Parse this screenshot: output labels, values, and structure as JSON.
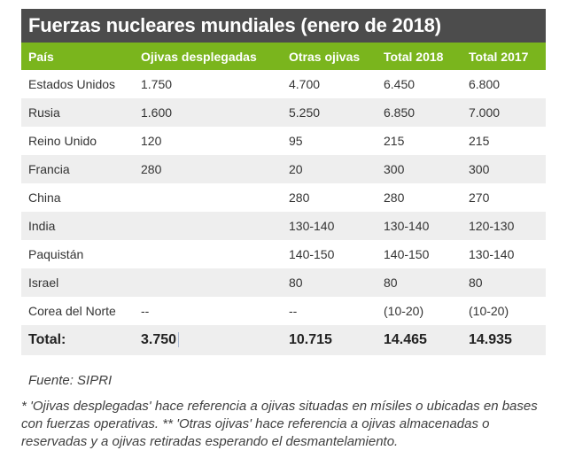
{
  "title": "Fuerzas nucleares mundiales (enero de 2018)",
  "columns": [
    "País",
    "Ojivas desplegadas",
    "Otras ojivas",
    "Total 2018",
    "Total 2017"
  ],
  "rows": [
    [
      "Estados Unidos",
      "1.750",
      "4.700",
      "6.450",
      "6.800"
    ],
    [
      "Rusia",
      "1.600",
      "5.250",
      "6.850",
      "7.000"
    ],
    [
      "Reino Unido",
      "120",
      "95",
      "215",
      "215"
    ],
    [
      "Francia",
      "280",
      "20",
      "300",
      "300"
    ],
    [
      "China",
      "",
      "280",
      "280",
      "270"
    ],
    [
      "India",
      "",
      "130-140",
      "130-140",
      "120-130"
    ],
    [
      "Paquistán",
      "",
      "140-150",
      "140-150",
      "130-140"
    ],
    [
      "Israel",
      "",
      "80",
      "80",
      "80"
    ],
    [
      "Corea del Norte",
      "--",
      "--",
      "(10-20)",
      "(10-20)"
    ]
  ],
  "total": [
    "Total:",
    "3.750",
    "10.715",
    "14.465",
    "14.935"
  ],
  "source": "Fuente: SIPRI",
  "note": "* 'Ojivas desplegadas' hace referencia a ojivas situadas en mísiles o ubicadas en bases con fuerzas operativas. ** 'Otras ojivas' hace referencia a ojivas almacenadas o reservadas y a ojivas retiradas esperando el desmantelamiento.",
  "colors": {
    "title_bg": "#4c4c4c",
    "header_bg": "#7ab51d",
    "stripe_bg": "#eeeeee"
  }
}
